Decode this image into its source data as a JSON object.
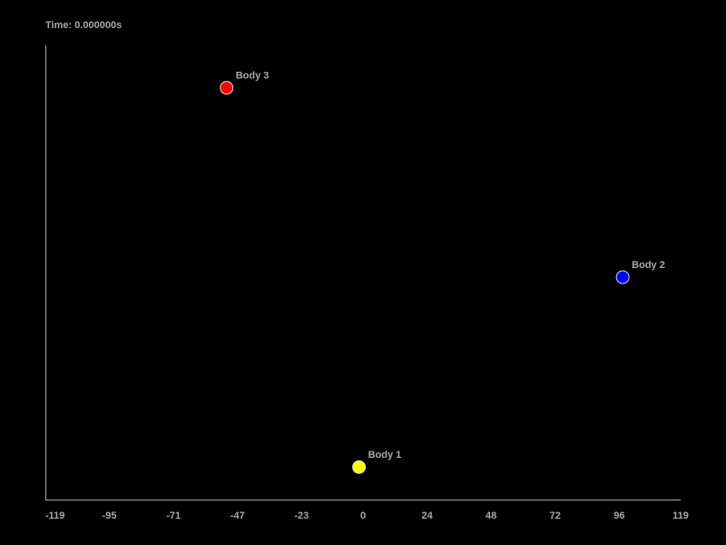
{
  "time_label": "Time: 0.000000s",
  "chart_data": {
    "type": "scatter",
    "title": "",
    "xlabel": "",
    "ylabel": "",
    "xlim": [
      -119,
      119
    ],
    "ylim": [
      -145,
      126
    ],
    "x_ticks": [
      -119,
      -95,
      -71,
      -47,
      -23,
      0,
      24,
      48,
      72,
      96,
      119
    ],
    "y_ticks": [],
    "grid": false,
    "bodies": [
      {
        "name": "Body 1",
        "x": -1.5,
        "y": -125.6,
        "color": "#ffff00"
      },
      {
        "name": "Body 2",
        "x": 97.3,
        "y": -12.3,
        "color": "#0000ff"
      },
      {
        "name": "Body 3",
        "x": -51.1,
        "y": 100.7,
        "color": "#ff0000"
      }
    ]
  }
}
